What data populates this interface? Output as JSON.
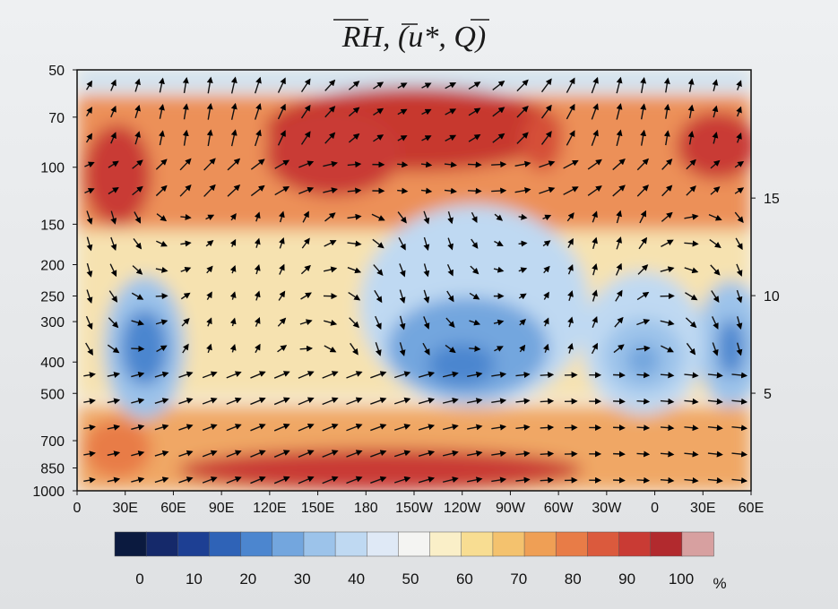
{
  "title": "RH, (u*, Q)",
  "chart_data": {
    "type": "heatmap",
    "title": "RH, (u*, Q)",
    "field": "relative humidity (%) with vector overlay",
    "x_axis": {
      "ticks": [
        "0",
        "30E",
        "60E",
        "90E",
        "120E",
        "150E",
        "180",
        "150W",
        "120W",
        "90W",
        "60W",
        "30W",
        "0",
        "30E",
        "60E"
      ],
      "range": [
        "0",
        "60E"
      ]
    },
    "y_axis_left": {
      "ticks": [
        "50",
        "70",
        "100",
        "150",
        "200",
        "250",
        "300",
        "400",
        "500",
        "700",
        "850",
        "1000"
      ],
      "scale": "log",
      "range": [
        1000,
        50
      ]
    },
    "y_axis_right": {
      "ticks": [
        "15",
        "10",
        "5"
      ]
    },
    "colorbar": {
      "labels": [
        "0",
        "10",
        "20",
        "30",
        "40",
        "50",
        "60",
        "70",
        "80",
        "90",
        "100"
      ],
      "unit": "%",
      "colors": [
        "#0b1a3f",
        "#15296a",
        "#1d3f93",
        "#2f63b7",
        "#4c86cf",
        "#73a6de",
        "#9cc3ea",
        "#bfd9f2",
        "#dfe9f6",
        "#f4f4f2",
        "#faefc8",
        "#f8dd92",
        "#f4c26e",
        "#ef9f55",
        "#e87c47",
        "#db5a3d",
        "#c93b34",
        "#b22a2e",
        "#d7a0a0"
      ]
    },
    "features": {
      "dry_centers_rh": [
        {
          "lon": "40E",
          "p": 400,
          "rh": 25
        },
        {
          "lon": "130W",
          "p": 400,
          "rh": 25
        },
        {
          "lon": "10W",
          "p": 400,
          "rh": 30
        },
        {
          "lon": "55E",
          "p": 400,
          "rh": 25
        }
      ],
      "moist_regions_rh": [
        {
          "lon": "160E",
          "p": 80,
          "rh": 95
        },
        {
          "lon": "20E",
          "p": 100,
          "rh": 90
        },
        {
          "lon": "180",
          "p": 900,
          "rh": 90
        }
      ]
    }
  }
}
